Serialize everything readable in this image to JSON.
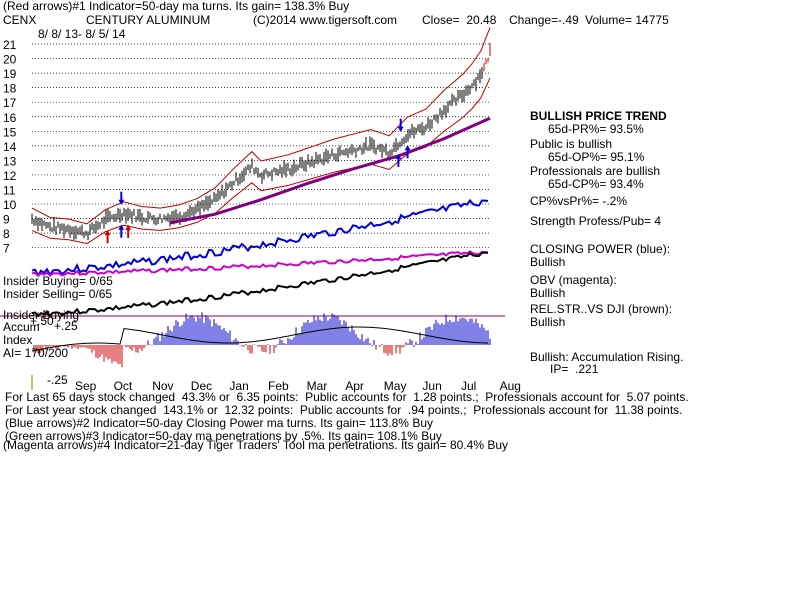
{
  "header": {
    "line1": "(Red arrows)#1 Indicator=50-day ma turns. Its gain= 138.3% Buy",
    "ticker": "CENX",
    "company": "CENTURY ALUMINUM",
    "copyright": "(C)2014 www.tigersoft.com",
    "close": "Close=  20.48",
    "change": "Change=-.49",
    "volume": "Volume= 14775",
    "date_range": "8/ 8/ 13- 8/ 5/ 14"
  },
  "right_panel": {
    "trend_title": "BULLISH PRICE TREND",
    "trend_pr": "65d-PR%= 93.5%",
    "public_title": "Public is bullish",
    "public_op": "65d-OP%= 95.1%",
    "pros_title": "Professionals are bullish",
    "pros_cp": "65d-CP%= 93.4%",
    "cp_vs_pr": "CP%vsPr%= -.2%",
    "strength": "Strength Profess/Pub= 4",
    "closing_power_title": "CLOSING POWER (blue):",
    "closing_power_val": "Bullish",
    "obv_title": "OBV (magenta):",
    "obv_val": "Bullish",
    "relstr_title": "REL.STR..VS DJI (brown):",
    "relstr_val": "Bullish",
    "accum_title": "Bullish: Accumulation Rising.",
    "accum_ip": "IP=  .221"
  },
  "left_labels": {
    "insider_buying_top": "Insider Buying= 0/65",
    "insider_selling": "Insider Selling= 0/65",
    "insider_buying_bottom": "Insider Buying",
    "accum": "Accum",
    "index": "Index",
    "ai": "AI= 170/200",
    "plus25": "+.25",
    "plus50": "+.50",
    "minus25": "-.25"
  },
  "footer": {
    "line1": "For Last 65 days stock changed  43.3% or  6.35 points:  Public accounts for  1.28 points.;  Professionals account for  5.07 points.",
    "line2": "For Last year stock changed  143.1% or  12.32 points:  Public accounts for  .94 points.;  Professionals account for  11.38 points.",
    "line3": "(Blue arrows)#2 Indicator=50-day Closing Power ma turns. Its gain= 113.8% Buy",
    "line4": "(Green arrows)#3 Indicator=50-day ma penetrations by .5%. Its gain= 108.1% Buy",
    "line5": "(Magenta arrows)#4 Indicator=21-day Tiger Traders' Tool ma penetrations. Its gain= 80.4% Buy"
  },
  "chart_data": {
    "type": "line",
    "title": "CENTURY ALUMINUM",
    "y_ticks": [
      21,
      20,
      19,
      18,
      17,
      16,
      15,
      14,
      13,
      12,
      11,
      10,
      9,
      8,
      7
    ],
    "ylim": [
      6.6,
      21.4
    ],
    "months": [
      "Sep",
      "Oct",
      "Nov",
      "Dec",
      "Jan",
      "Feb",
      "Mar",
      "Apr",
      "May",
      "Jun",
      "Jul",
      "Aug"
    ],
    "grid": true,
    "series": [
      {
        "name": "Price",
        "color": "#000000",
        "x": [
          0,
          0.04,
          0.08,
          0.12,
          0.16,
          0.2,
          0.24,
          0.28,
          0.32,
          0.36,
          0.4,
          0.44,
          0.48,
          0.5,
          0.56,
          0.62,
          0.66,
          0.7,
          0.74,
          0.78,
          0.82,
          0.86,
          0.9,
          0.94,
          0.97,
          0.99,
          1.0
        ],
        "values": [
          9.0,
          8.4,
          8.3,
          8.0,
          8.9,
          9.4,
          9.1,
          9.0,
          9.2,
          9.6,
          10.3,
          11.5,
          12.6,
          12.0,
          12.4,
          13.0,
          13.4,
          13.7,
          14.0,
          13.6,
          14.8,
          15.3,
          16.5,
          17.5,
          18.5,
          19.5,
          20.5
        ]
      },
      {
        "name": "50-day MA",
        "color": "#800080",
        "x": [
          0.3,
          0.4,
          0.5,
          0.6,
          0.7,
          0.8,
          0.9,
          1.0
        ],
        "values": [
          8.7,
          9.3,
          10.3,
          11.4,
          12.4,
          13.3,
          14.5,
          15.9
        ]
      }
    ],
    "arrows": [
      {
        "color": "red",
        "dir": "up",
        "month_x": 0.21
      },
      {
        "color": "red",
        "dir": "up",
        "month_x": 0.165
      },
      {
        "color": "blue",
        "dir": "up",
        "month_x": 0.195
      },
      {
        "color": "blue",
        "dir": "down",
        "month_x": 0.195
      },
      {
        "color": "blue",
        "dir": "down",
        "month_x": 0.805
      },
      {
        "color": "blue",
        "dir": "up",
        "month_x": 0.8
      },
      {
        "color": "blue",
        "dir": "up",
        "month_x": 0.82
      }
    ]
  }
}
